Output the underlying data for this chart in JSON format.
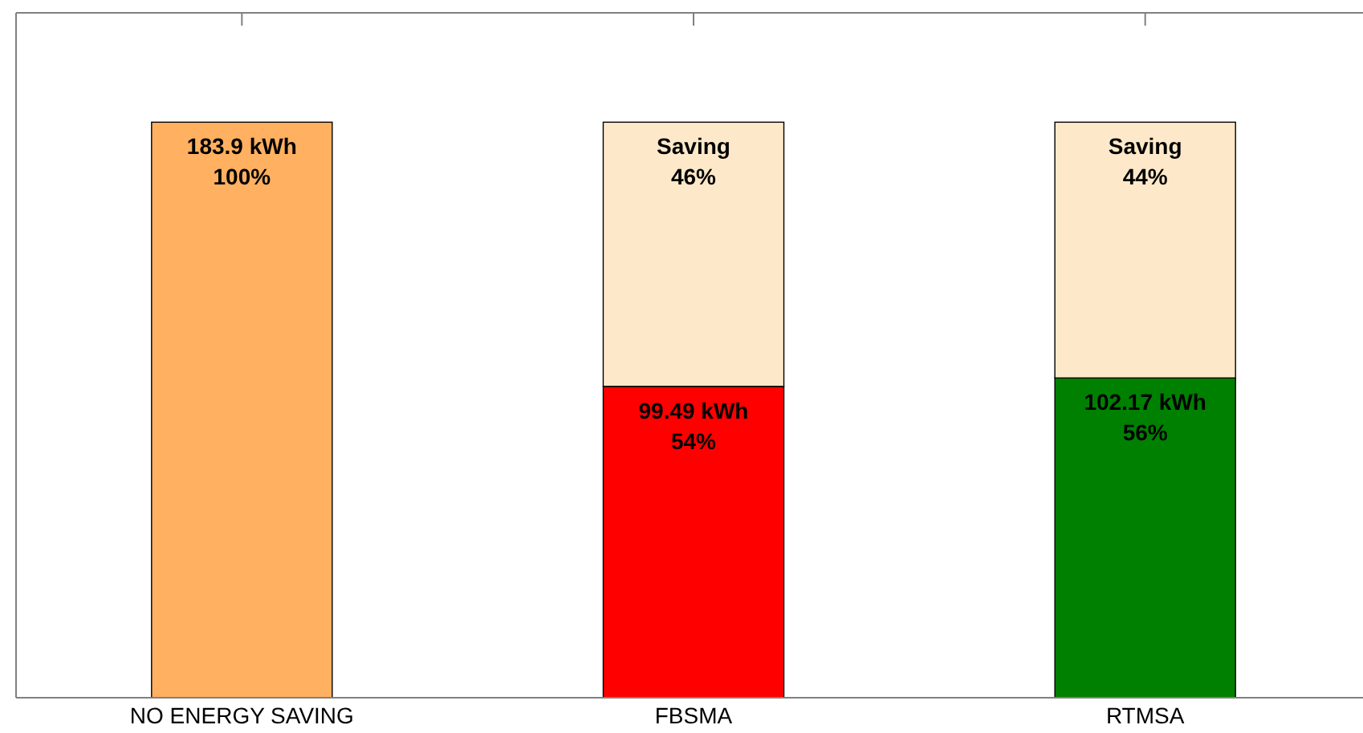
{
  "chart_data": {
    "type": "bar",
    "stacked": true,
    "categories": [
      "NO ENERGY SAVING",
      "FBSMA",
      "RTMSA"
    ],
    "series": [
      {
        "colors": [
          "#ffb060",
          "#ff0000",
          "#008000"
        ],
        "values": [
          183.9,
          99.49,
          102.17
        ],
        "value_labels": [
          "183.9 kWh\n100%",
          "99.49 kWh\n54%",
          "102.17 kWh\n56%"
        ]
      },
      {
        "color": "#fde9c9",
        "values": [
          null,
          84.41,
          81.73
        ],
        "value_labels": [
          null,
          "Saving\n46%",
          "Saving\n44%"
        ]
      }
    ]
  }
}
